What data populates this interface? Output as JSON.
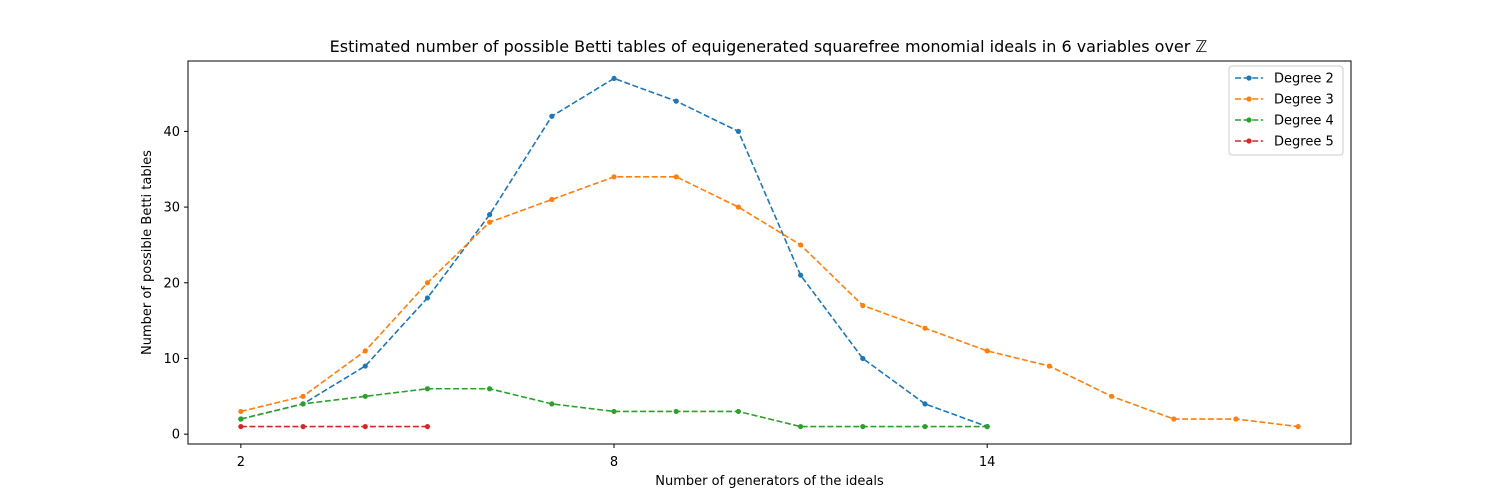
{
  "chart_data": {
    "type": "line",
    "title": "Estimated number of possible Betti tables of equigenerated squarefree monomial ideals in 6 variables over ℤ",
    "xlabel": "Number of generators of the ideals",
    "ylabel": "Number of possible Betti tables",
    "xlim": [
      1.15,
      19.85
    ],
    "ylim": [
      -1.3,
      49.3
    ],
    "xticks": [
      2,
      8,
      14
    ],
    "yticks": [
      0,
      10,
      20,
      30,
      40
    ],
    "grid": false,
    "legend_position": "top-right",
    "line_style": "dashed",
    "marker": "dot",
    "series": [
      {
        "name": "Degree 2",
        "color": "#1f77b4",
        "x": [
          2,
          3,
          4,
          5,
          6,
          7,
          8,
          9,
          10,
          11,
          12,
          13,
          14
        ],
        "y": [
          2,
          4,
          9,
          18,
          29,
          42,
          47,
          44,
          40,
          21,
          10,
          4,
          1
        ]
      },
      {
        "name": "Degree 3",
        "color": "#ff7f0e",
        "x": [
          2,
          3,
          4,
          5,
          6,
          7,
          8,
          9,
          10,
          11,
          12,
          13,
          14,
          15,
          16,
          17,
          18,
          19
        ],
        "y": [
          3,
          5,
          11,
          20,
          28,
          31,
          34,
          34,
          30,
          25,
          17,
          14,
          11,
          9,
          5,
          2,
          2,
          1
        ]
      },
      {
        "name": "Degree 4",
        "color": "#2ca02c",
        "x": [
          2,
          3,
          4,
          5,
          6,
          7,
          8,
          9,
          10,
          11,
          12,
          13,
          14
        ],
        "y": [
          2,
          4,
          5,
          6,
          6,
          4,
          3,
          3,
          3,
          1,
          1,
          1,
          1
        ]
      },
      {
        "name": "Degree 5",
        "color": "#d62728",
        "x": [
          2,
          3,
          4,
          5
        ],
        "y": [
          1,
          1,
          1,
          1
        ]
      }
    ]
  }
}
